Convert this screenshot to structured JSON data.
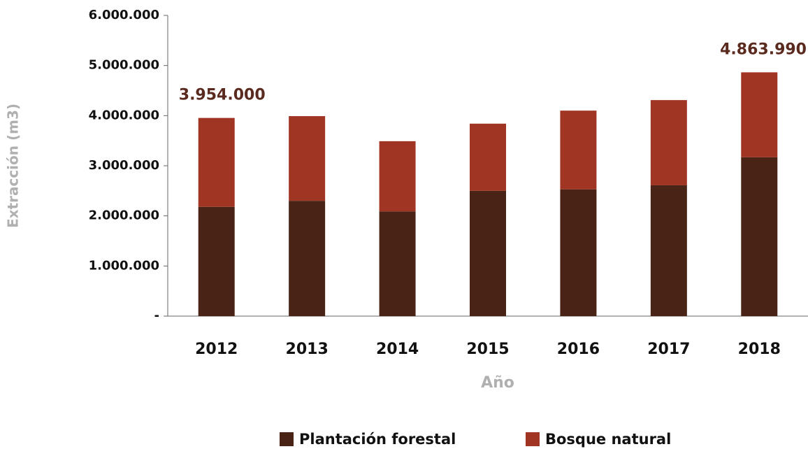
{
  "chart_data": {
    "type": "stacked_bar",
    "x_label": "Año",
    "y_label": "Extracción (m3)",
    "categories": [
      "2012",
      "2013",
      "2014",
      "2015",
      "2016",
      "2017",
      "2018"
    ],
    "series": [
      {
        "name": "Plantación forestal",
        "color": "#4a2317",
        "values": [
          2180000,
          2300000,
          2090000,
          2500000,
          2530000,
          2610000,
          3170000
        ]
      },
      {
        "name": "Bosque natural",
        "color": "#a03523",
        "values": [
          1774000,
          1690000,
          1400000,
          1340000,
          1570000,
          1700000,
          1693990
        ]
      }
    ],
    "annotations": [
      "3.954.000",
      "4.863.990"
    ],
    "ylim": [
      0,
      6000000
    ],
    "yticks": [
      {
        "value": 0,
        "label": "-"
      },
      {
        "value": 1000000,
        "label": "1.000.000"
      },
      {
        "value": 2000000,
        "label": "2.000.000"
      },
      {
        "value": 3000000,
        "label": "3.000.000"
      },
      {
        "value": 4000000,
        "label": "4.000.000"
      },
      {
        "value": 5000000,
        "label": "5.000.000"
      },
      {
        "value": 6000000,
        "label": "6.000.000"
      }
    ],
    "grid": false
  }
}
